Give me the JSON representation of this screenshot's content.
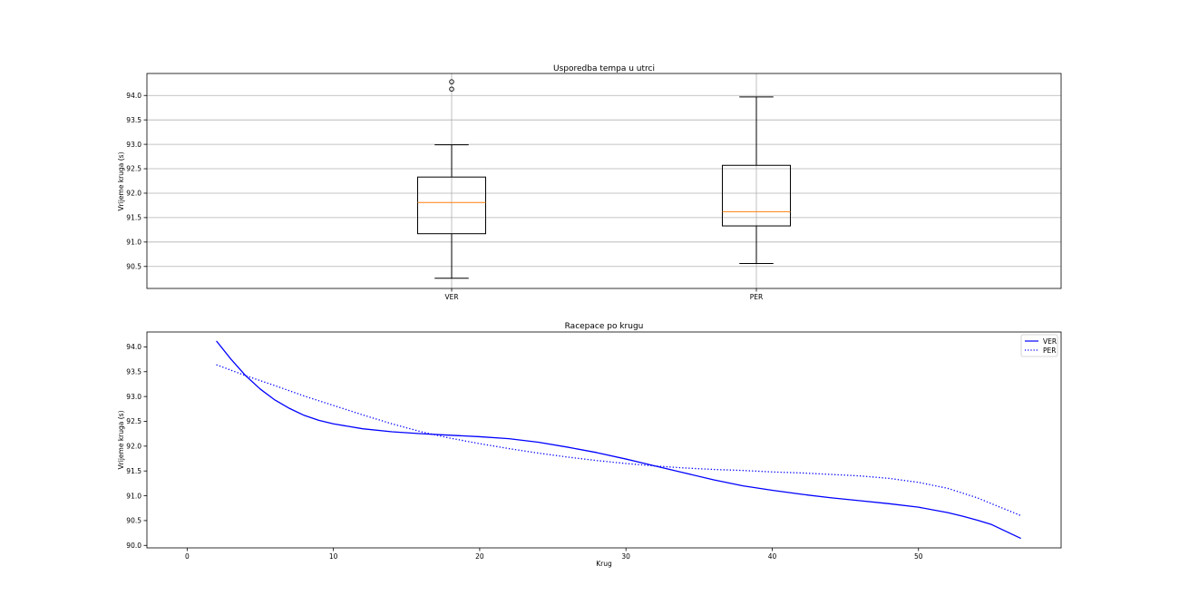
{
  "chart_data": [
    {
      "type": "box",
      "title": "Usporedba tempa u utrci",
      "xlabel": "",
      "ylabel": "Vrijeme kruga (s)",
      "ylim": [
        90.05,
        94.45
      ],
      "yticks": [
        "90.5",
        "91.0",
        "91.5",
        "92.0",
        "92.5",
        "93.0",
        "93.5",
        "94.0"
      ],
      "grid": true,
      "categories": [
        "VER",
        "PER"
      ],
      "boxes": [
        {
          "name": "VER",
          "whisker_low": 90.26,
          "q1": 91.17,
          "median": 91.81,
          "q3": 92.33,
          "whisker_high": 92.99,
          "outliers": [
            94.13,
            94.28
          ]
        },
        {
          "name": "PER",
          "whisker_low": 90.56,
          "q1": 91.33,
          "median": 91.62,
          "q3": 92.57,
          "whisker_high": 93.97,
          "outliers": []
        }
      ],
      "colors": {
        "box": "#000000",
        "median": "#ff7f0e",
        "grid": "#b0b0b0"
      }
    },
    {
      "type": "line",
      "title": "Racepace po krugu",
      "xlabel": "Krug",
      "ylabel": "Vrijeme kruga (s)",
      "xlim": [
        -2.75,
        59.75
      ],
      "ylim": [
        89.95,
        94.3
      ],
      "xticks": [
        "0",
        "10",
        "20",
        "30",
        "40",
        "50"
      ],
      "yticks": [
        "90.0",
        "90.5",
        "91.0",
        "91.5",
        "92.0",
        "92.5",
        "93.0",
        "93.5",
        "94.0"
      ],
      "grid": false,
      "legend": "top-right",
      "series": [
        {
          "name": "VER",
          "style": "solid",
          "color": "#0000ff",
          "x": [
            2,
            3,
            4,
            5,
            6,
            7,
            8,
            9,
            10,
            12,
            14,
            16,
            18,
            20,
            22,
            24,
            26,
            28,
            30,
            32,
            34,
            36,
            38,
            40,
            42,
            44,
            46,
            48,
            50,
            52,
            53,
            54,
            55,
            57
          ],
          "y": [
            94.12,
            93.75,
            93.42,
            93.15,
            92.93,
            92.76,
            92.62,
            92.52,
            92.45,
            92.35,
            92.29,
            92.25,
            92.22,
            92.19,
            92.15,
            92.08,
            91.98,
            91.87,
            91.74,
            91.6,
            91.46,
            91.32,
            91.2,
            91.11,
            91.03,
            90.96,
            90.9,
            90.84,
            90.77,
            90.66,
            90.59,
            90.51,
            90.42,
            90.14
          ]
        },
        {
          "name": "PER",
          "style": "dotted",
          "color": "#0000ff",
          "x": [
            2,
            4,
            6,
            8,
            10,
            12,
            14,
            16,
            18,
            20,
            22,
            24,
            26,
            28,
            30,
            32,
            34,
            36,
            38,
            40,
            42,
            44,
            46,
            48,
            50,
            52,
            54,
            56,
            57
          ],
          "y": [
            93.64,
            93.42,
            93.22,
            93.01,
            92.82,
            92.63,
            92.45,
            92.29,
            92.16,
            92.05,
            91.95,
            91.86,
            91.78,
            91.71,
            91.65,
            91.6,
            91.56,
            91.53,
            91.51,
            91.48,
            91.46,
            91.43,
            91.4,
            91.35,
            91.27,
            91.15,
            90.96,
            90.72,
            90.6
          ]
        }
      ]
    }
  ]
}
